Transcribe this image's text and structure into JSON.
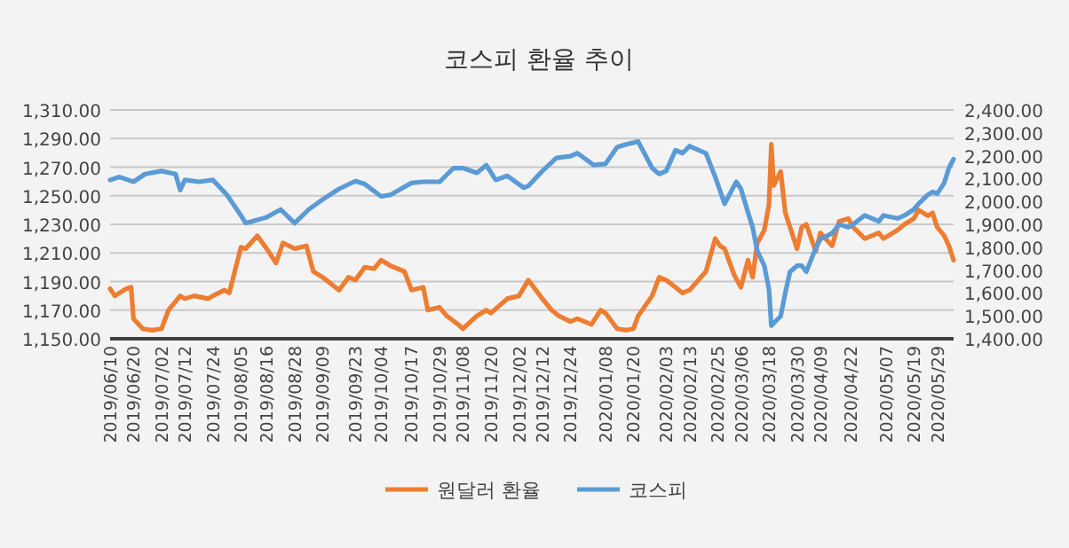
{
  "chart_data": {
    "type": "line",
    "title": "코스피 환율 추이",
    "xlim": [
      "2019-06-10",
      "2020-06-05"
    ],
    "xticks": [
      {
        "value": "2019-06-10",
        "label": "2019/06/10"
      },
      {
        "value": "2019-06-20",
        "label": "2019/06/20"
      },
      {
        "value": "2019-07-02",
        "label": "2019/07/02"
      },
      {
        "value": "2019-07-12",
        "label": "2019/07/12"
      },
      {
        "value": "2019-07-24",
        "label": "2019/07/24"
      },
      {
        "value": "2019-08-05",
        "label": "2019/08/05"
      },
      {
        "value": "2019-08-16",
        "label": "2019/08/16"
      },
      {
        "value": "2019-08-28",
        "label": "2019/08/28"
      },
      {
        "value": "2019-09-09",
        "label": "2019/09/09"
      },
      {
        "value": "2019-09-23",
        "label": "2019/09/23"
      },
      {
        "value": "2019-10-04",
        "label": "2019/10/04"
      },
      {
        "value": "2019-10-17",
        "label": "2019/10/17"
      },
      {
        "value": "2019-10-29",
        "label": "2019/10/29"
      },
      {
        "value": "2019-11-08",
        "label": "2019/11/08"
      },
      {
        "value": "2019-11-20",
        "label": "2019/11/20"
      },
      {
        "value": "2019-12-02",
        "label": "2019/12/02"
      },
      {
        "value": "2019-12-12",
        "label": "2019/12/12"
      },
      {
        "value": "2019-12-24",
        "label": "2019/12/24"
      },
      {
        "value": "2020-01-08",
        "label": "2020/01/08"
      },
      {
        "value": "2020-01-20",
        "label": "2020/01/20"
      },
      {
        "value": "2020-02-03",
        "label": "2020/02/03"
      },
      {
        "value": "2020-02-13",
        "label": "2020/02/13"
      },
      {
        "value": "2020-02-25",
        "label": "2020/02/25"
      },
      {
        "value": "2020-03-06",
        "label": "2020/03/06"
      },
      {
        "value": "2020-03-18",
        "label": "2020/03/18"
      },
      {
        "value": "2020-03-30",
        "label": "2020/03/30"
      },
      {
        "value": "2020-04-09",
        "label": "2020/04/09"
      },
      {
        "value": "2020-04-22",
        "label": "2020/04/22"
      },
      {
        "value": "2020-05-07",
        "label": "2020/05/07"
      },
      {
        "value": "2020-05-19",
        "label": "2020/05/19"
      },
      {
        "value": "2020-05-29",
        "label": "2020/05/29"
      }
    ],
    "ylim": [
      1150,
      1310
    ],
    "yticks": [
      {
        "value": 1150,
        "label": "1,150.00"
      },
      {
        "value": 1170,
        "label": "1,170.00"
      },
      {
        "value": 1190,
        "label": "1,190.00"
      },
      {
        "value": 1210,
        "label": "1,210.00"
      },
      {
        "value": 1230,
        "label": "1,230.00"
      },
      {
        "value": 1250,
        "label": "1,250.00"
      },
      {
        "value": 1270,
        "label": "1,270.00"
      },
      {
        "value": 1290,
        "label": "1,290.00"
      },
      {
        "value": 1310,
        "label": "1,310.00"
      }
    ],
    "y2lim": [
      1400,
      2400
    ],
    "y2ticks": [
      {
        "value": 1400,
        "label": "1,400.00"
      },
      {
        "value": 1500,
        "label": "1,500.00"
      },
      {
        "value": 1600,
        "label": "1,600.00"
      },
      {
        "value": 1700,
        "label": "1,700.00"
      },
      {
        "value": 1800,
        "label": "1,800.00"
      },
      {
        "value": 1900,
        "label": "1,900.00"
      },
      {
        "value": 2000,
        "label": "2,000.00"
      },
      {
        "value": 2100,
        "label": "2,100.00"
      },
      {
        "value": 2200,
        "label": "2,200.00"
      },
      {
        "value": 2300,
        "label": "2,300.00"
      },
      {
        "value": 2400,
        "label": "2,400.00"
      }
    ],
    "grid": "y",
    "legend": "bottom",
    "marker": "none",
    "line_style": "solid",
    "series": [
      {
        "name": "원달러 환율",
        "color": "#ed7d31",
        "axis": "y",
        "x": [
          "2019-06-10",
          "2019-06-12",
          "2019-06-17",
          "2019-06-19",
          "2019-06-20",
          "2019-06-24",
          "2019-06-28",
          "2019-07-02",
          "2019-07-05",
          "2019-07-10",
          "2019-07-12",
          "2019-07-16",
          "2019-07-22",
          "2019-07-24",
          "2019-07-29",
          "2019-07-31",
          "2019-08-05",
          "2019-08-07",
          "2019-08-12",
          "2019-08-16",
          "2019-08-20",
          "2019-08-23",
          "2019-08-28",
          "2019-09-02",
          "2019-09-05",
          "2019-09-09",
          "2019-09-16",
          "2019-09-20",
          "2019-09-23",
          "2019-09-27",
          "2019-10-01",
          "2019-10-04",
          "2019-10-08",
          "2019-10-14",
          "2019-10-17",
          "2019-10-22",
          "2019-10-24",
          "2019-10-29",
          "2019-11-01",
          "2019-11-06",
          "2019-11-08",
          "2019-11-14",
          "2019-11-18",
          "2019-11-20",
          "2019-11-27",
          "2019-12-02",
          "2019-12-06",
          "2019-12-12",
          "2019-12-16",
          "2019-12-19",
          "2019-12-24",
          "2019-12-27",
          "2020-01-02",
          "2020-01-06",
          "2020-01-08",
          "2020-01-13",
          "2020-01-17",
          "2020-01-20",
          "2020-01-22",
          "2020-01-28",
          "2020-01-31",
          "2020-02-03",
          "2020-02-07",
          "2020-02-10",
          "2020-02-13",
          "2020-02-20",
          "2020-02-24",
          "2020-02-26",
          "2020-02-28",
          "2020-03-03",
          "2020-03-06",
          "2020-03-09",
          "2020-03-11",
          "2020-03-13",
          "2020-03-16",
          "2020-03-18",
          "2020-03-19",
          "2020-03-20",
          "2020-03-23",
          "2020-03-25",
          "2020-03-27",
          "2020-03-30",
          "2020-04-01",
          "2020-04-03",
          "2020-04-07",
          "2020-04-09",
          "2020-04-14",
          "2020-04-17",
          "2020-04-21",
          "2020-04-23",
          "2020-04-28",
          "2020-05-04",
          "2020-05-06",
          "2020-05-12",
          "2020-05-15",
          "2020-05-19",
          "2020-05-21",
          "2020-05-25",
          "2020-05-27",
          "2020-05-29",
          "2020-06-01",
          "2020-06-03",
          "2020-06-05"
        ],
        "values": [
          1185,
          1180,
          1185,
          1186,
          1164,
          1157,
          1156,
          1157,
          1170,
          1180,
          1178,
          1180,
          1178,
          1180,
          1184,
          1182,
          1214,
          1213,
          1222,
          1213,
          1203,
          1217,
          1213,
          1215,
          1197,
          1193,
          1184,
          1193,
          1191,
          1200,
          1199,
          1205,
          1201,
          1197,
          1184,
          1186,
          1170,
          1172,
          1166,
          1160,
          1157,
          1166,
          1170,
          1168,
          1178,
          1180,
          1191,
          1178,
          1170,
          1166,
          1162,
          1164,
          1160,
          1170,
          1168,
          1157,
          1156,
          1157,
          1166,
          1180,
          1193,
          1191,
          1186,
          1182,
          1184,
          1197,
          1220,
          1215,
          1213,
          1195,
          1186,
          1205,
          1193,
          1217,
          1226,
          1244,
          1286,
          1257,
          1267,
          1238,
          1228,
          1213,
          1228,
          1230,
          1211,
          1224,
          1215,
          1232,
          1234,
          1228,
          1220,
          1224,
          1220,
          1226,
          1230,
          1234,
          1240,
          1236,
          1238,
          1228,
          1222,
          1215,
          1205
        ]
      },
      {
        "name": "코스피",
        "color": "#5b9bd5",
        "axis": "y2",
        "x": [
          "2019-06-10",
          "2019-06-14",
          "2019-06-20",
          "2019-06-25",
          "2019-07-02",
          "2019-07-08",
          "2019-07-10",
          "2019-07-12",
          "2019-07-18",
          "2019-07-24",
          "2019-07-30",
          "2019-08-05",
          "2019-08-07",
          "2019-08-16",
          "2019-08-22",
          "2019-08-28",
          "2019-09-03",
          "2019-09-09",
          "2019-09-16",
          "2019-09-23",
          "2019-09-27",
          "2019-10-04",
          "2019-10-08",
          "2019-10-17",
          "2019-10-22",
          "2019-10-29",
          "2019-11-04",
          "2019-11-08",
          "2019-11-14",
          "2019-11-18",
          "2019-11-22",
          "2019-11-27",
          "2019-12-04",
          "2019-12-06",
          "2019-12-12",
          "2019-12-18",
          "2019-12-24",
          "2019-12-27",
          "2020-01-03",
          "2020-01-08",
          "2020-01-13",
          "2020-01-17",
          "2020-01-22",
          "2020-01-28",
          "2020-01-31",
          "2020-02-03",
          "2020-02-07",
          "2020-02-10",
          "2020-02-13",
          "2020-02-20",
          "2020-02-24",
          "2020-02-28",
          "2020-03-04",
          "2020-03-06",
          "2020-03-09",
          "2020-03-11",
          "2020-03-13",
          "2020-03-16",
          "2020-03-18",
          "2020-03-19",
          "2020-03-23",
          "2020-03-25",
          "2020-03-27",
          "2020-03-30",
          "2020-04-01",
          "2020-04-03",
          "2020-04-07",
          "2020-04-09",
          "2020-04-14",
          "2020-04-17",
          "2020-04-21",
          "2020-04-23",
          "2020-04-28",
          "2020-05-04",
          "2020-05-06",
          "2020-05-12",
          "2020-05-15",
          "2020-05-19",
          "2020-05-21",
          "2020-05-25",
          "2020-05-27",
          "2020-05-29",
          "2020-06-01",
          "2020-06-03",
          "2020-06-05"
        ],
        "values": [
          2094,
          2107,
          2086,
          2120,
          2133,
          2120,
          2050,
          2094,
          2086,
          2094,
          2029,
          1939,
          1905,
          1931,
          1965,
          1905,
          1965,
          2009,
          2055,
          2089,
          2076,
          2022,
          2029,
          2081,
          2086,
          2086,
          2146,
          2146,
          2125,
          2159,
          2094,
          2112,
          2060,
          2068,
          2133,
          2190,
          2198,
          2211,
          2159,
          2164,
          2237,
          2250,
          2262,
          2146,
          2120,
          2133,
          2224,
          2211,
          2242,
          2211,
          2107,
          1990,
          2086,
          2055,
          1952,
          1887,
          1783,
          1719,
          1615,
          1457,
          1499,
          1602,
          1693,
          1719,
          1719,
          1693,
          1796,
          1835,
          1861,
          1900,
          1887,
          1900,
          1939,
          1913,
          1939,
          1926,
          1939,
          1965,
          1990,
          2029,
          2042,
          2034,
          2081,
          2146,
          2185
        ]
      }
    ]
  }
}
